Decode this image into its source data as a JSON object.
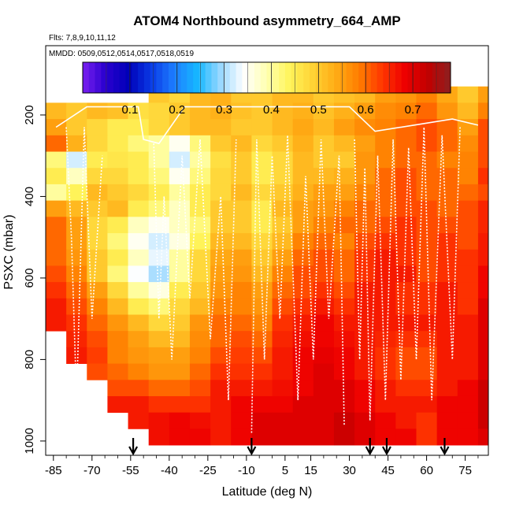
{
  "chart_data": {
    "type": "heatmap",
    "title": "ATOM4 Northbound asymmetry_664_AMP",
    "flights_label": "Flts: 7,8,9,10,11,12",
    "dates_label": "MMDD: 0509,0512,0514,0517,0518,0519",
    "xlabel": "Latitude (deg N)",
    "ylabel": "PSXC (mbar)",
    "xlim": [
      -88,
      84
    ],
    "ylim": [
      1035,
      30
    ],
    "x_ticks": [
      -85,
      -70,
      -55,
      -40,
      -25,
      -10,
      5,
      15,
      30,
      45,
      60,
      75
    ],
    "x_tick_labels": [
      "-85",
      "-70",
      "-55",
      "-40",
      "-25",
      "-10",
      "5",
      "15",
      "30",
      "45",
      "60",
      "75"
    ],
    "y_ticks": [
      200,
      400,
      600,
      800,
      1000
    ],
    "y_tick_labels": [
      "200",
      "400",
      "600",
      "800",
      "1000"
    ],
    "colorbar": {
      "min": 0.0,
      "max": 0.78,
      "ticks": [
        0.1,
        0.2,
        0.3,
        0.4,
        0.5,
        0.6,
        0.7
      ],
      "tick_labels": [
        "0.1",
        "0.2",
        "0.3",
        "0.4",
        "0.5",
        "0.6",
        "0.7"
      ],
      "colors": [
        "#7a1ff0",
        "#2a00cf",
        "#0000b8",
        "#0a3ce6",
        "#1e7fff",
        "#16b8ff",
        "#9ad8ff",
        "#ffffff",
        "#ffffb0",
        "#fff45a",
        "#ffd335",
        "#ffac15",
        "#ff7e00",
        "#ff3800",
        "#ee0000",
        "#c20000",
        "#8c2020"
      ]
    },
    "pressure_levels": [
      150,
      190,
      230,
      270,
      310,
      350,
      390,
      430,
      470,
      510,
      550,
      590,
      630,
      670,
      710,
      750,
      790,
      830,
      870,
      910,
      950,
      990
    ],
    "lat_edges": [
      -88,
      -80,
      -72,
      -64,
      -56,
      -48,
      -40,
      -32,
      -24,
      -16,
      -8,
      0,
      8,
      16,
      24,
      32,
      40,
      48,
      56,
      64,
      72,
      80,
      84
    ],
    "value_grid": [
      [
        null,
        null,
        null,
        null,
        null,
        0.5,
        0.48,
        0.52,
        0.53,
        0.5,
        0.5,
        0.52,
        0.52,
        0.5,
        0.51,
        0.52,
        0.55,
        0.56,
        0.58,
        0.54,
        0.5,
        0.55
      ],
      [
        0.52,
        0.5,
        0.52,
        0.51,
        0.47,
        0.48,
        0.5,
        0.52,
        0.53,
        0.51,
        0.5,
        0.52,
        0.53,
        0.51,
        0.53,
        0.55,
        0.57,
        0.58,
        0.6,
        0.56,
        0.52,
        0.58
      ],
      [
        0.55,
        0.5,
        0.48,
        0.45,
        0.45,
        0.48,
        0.5,
        0.52,
        0.52,
        0.5,
        0.5,
        0.52,
        0.54,
        0.52,
        0.55,
        0.57,
        0.58,
        0.6,
        0.62,
        0.6,
        0.55,
        0.62
      ],
      [
        0.6,
        0.53,
        0.48,
        0.45,
        0.42,
        0.4,
        0.35,
        0.42,
        0.5,
        0.52,
        0.48,
        0.5,
        0.53,
        0.5,
        0.52,
        0.55,
        0.58,
        0.6,
        0.62,
        0.6,
        0.57,
        0.62
      ],
      [
        0.42,
        0.32,
        0.45,
        0.46,
        0.45,
        0.4,
        0.32,
        0.4,
        0.47,
        0.5,
        0.45,
        0.48,
        0.52,
        0.5,
        0.5,
        0.56,
        0.58,
        0.6,
        0.6,
        0.58,
        0.58,
        0.62
      ],
      [
        0.45,
        0.38,
        0.48,
        0.48,
        0.45,
        0.42,
        0.35,
        0.42,
        0.48,
        0.5,
        0.45,
        0.48,
        0.52,
        0.52,
        0.53,
        0.56,
        0.6,
        0.62,
        0.6,
        0.6,
        0.58,
        0.64
      ],
      [
        0.4,
        0.44,
        0.52,
        0.5,
        0.48,
        0.45,
        0.4,
        0.45,
        0.48,
        0.52,
        0.48,
        0.5,
        0.53,
        0.55,
        0.55,
        0.58,
        0.6,
        0.62,
        0.6,
        0.6,
        0.6,
        0.62
      ],
      [
        0.55,
        0.52,
        0.5,
        0.52,
        0.45,
        0.42,
        0.38,
        0.45,
        0.5,
        0.5,
        0.45,
        0.52,
        0.55,
        0.56,
        0.58,
        0.6,
        0.6,
        0.62,
        0.62,
        0.6,
        0.62,
        0.65
      ],
      [
        0.6,
        0.55,
        0.48,
        0.45,
        0.38,
        0.35,
        0.38,
        0.42,
        0.5,
        0.5,
        0.45,
        0.5,
        0.55,
        0.58,
        0.6,
        0.6,
        0.62,
        0.64,
        0.62,
        0.62,
        0.62,
        0.65
      ],
      [
        0.6,
        0.55,
        0.48,
        0.42,
        0.35,
        0.32,
        0.36,
        0.44,
        0.52,
        0.52,
        0.48,
        0.52,
        0.58,
        0.6,
        0.58,
        0.62,
        0.64,
        0.64,
        0.62,
        0.64,
        0.62,
        0.66
      ],
      [
        0.6,
        0.56,
        0.5,
        0.45,
        0.38,
        0.33,
        0.4,
        0.48,
        0.54,
        0.55,
        0.5,
        0.55,
        0.6,
        0.62,
        0.6,
        0.64,
        0.66,
        0.64,
        0.62,
        0.64,
        0.64,
        0.66
      ],
      [
        0.62,
        0.58,
        0.5,
        0.42,
        0.34,
        0.3,
        0.4,
        0.48,
        0.55,
        0.56,
        0.52,
        0.58,
        0.62,
        0.62,
        0.6,
        0.64,
        0.66,
        0.66,
        0.62,
        0.64,
        0.64,
        0.68
      ],
      [
        0.64,
        0.6,
        0.55,
        0.48,
        0.4,
        0.36,
        0.45,
        0.5,
        0.56,
        0.58,
        0.55,
        0.6,
        0.62,
        0.64,
        0.62,
        0.66,
        0.66,
        0.64,
        0.64,
        0.66,
        0.64,
        0.68
      ],
      [
        0.66,
        0.62,
        0.58,
        0.52,
        0.45,
        0.42,
        0.48,
        0.52,
        0.58,
        0.58,
        0.56,
        0.62,
        0.64,
        0.66,
        0.64,
        0.66,
        0.66,
        0.64,
        0.64,
        0.66,
        0.64,
        0.7
      ],
      [
        0.66,
        0.64,
        0.6,
        0.56,
        0.52,
        0.48,
        0.5,
        0.56,
        0.6,
        0.6,
        0.58,
        0.64,
        0.66,
        0.68,
        0.66,
        0.66,
        0.66,
        0.66,
        0.66,
        0.66,
        0.66,
        0.7
      ],
      [
        null,
        0.65,
        0.62,
        0.58,
        0.55,
        0.52,
        0.52,
        0.57,
        0.6,
        0.62,
        0.6,
        0.65,
        0.67,
        0.68,
        0.67,
        0.66,
        0.65,
        0.64,
        0.64,
        0.66,
        0.66,
        0.7
      ],
      [
        null,
        0.66,
        0.63,
        0.58,
        0.56,
        0.55,
        0.55,
        0.58,
        0.62,
        0.63,
        0.62,
        0.66,
        0.68,
        0.69,
        0.68,
        0.66,
        0.64,
        0.62,
        0.62,
        0.66,
        0.66,
        0.7
      ],
      [
        null,
        null,
        0.62,
        0.6,
        0.58,
        0.56,
        0.56,
        0.6,
        0.64,
        0.64,
        0.64,
        0.66,
        0.68,
        0.7,
        0.68,
        0.66,
        0.64,
        0.62,
        0.62,
        0.66,
        0.66,
        0.7
      ],
      [
        null,
        null,
        null,
        0.62,
        0.62,
        0.6,
        0.6,
        0.62,
        0.66,
        0.66,
        0.66,
        0.67,
        0.68,
        0.7,
        0.7,
        0.68,
        0.66,
        0.64,
        0.64,
        0.66,
        0.68,
        0.72
      ],
      [
        null,
        null,
        null,
        0.66,
        0.66,
        0.64,
        0.64,
        0.64,
        0.66,
        0.68,
        0.68,
        0.68,
        0.7,
        0.7,
        0.7,
        0.68,
        0.66,
        0.66,
        0.66,
        0.68,
        0.68,
        0.72
      ],
      [
        null,
        null,
        null,
        null,
        0.66,
        0.67,
        0.68,
        0.67,
        0.66,
        0.68,
        0.7,
        0.7,
        0.7,
        0.7,
        0.72,
        0.7,
        0.68,
        0.66,
        0.64,
        0.68,
        0.68,
        0.72
      ],
      [
        null,
        null,
        null,
        null,
        null,
        0.67,
        0.68,
        0.68,
        0.66,
        0.68,
        0.7,
        0.7,
        0.7,
        0.7,
        0.72,
        0.7,
        0.68,
        0.68,
        0.64,
        0.68,
        0.68,
        0.7
      ]
    ],
    "flight_tracks": [
      {
        "name": "track-1",
        "points": [
          [
            -80,
            230
          ],
          [
            -78,
            500
          ],
          [
            -76,
            900
          ],
          [
            -73,
            230
          ],
          [
            -70,
            700
          ],
          [
            -66,
            300
          ]
        ]
      },
      {
        "name": "track-2",
        "points": [
          [
            -46,
            270
          ],
          [
            -44,
            700
          ],
          [
            -42,
            400
          ],
          [
            -39,
            800
          ],
          [
            -35,
            300
          ],
          [
            -32,
            650
          ],
          [
            -28,
            260
          ],
          [
            -24,
            750
          ],
          [
            -20,
            400
          ],
          [
            -17,
            900
          ],
          [
            -14,
            260
          ]
        ]
      },
      {
        "name": "track-3",
        "points": [
          [
            -8,
            980
          ],
          [
            -6,
            260
          ],
          [
            -3,
            800
          ],
          [
            0,
            300
          ],
          [
            3,
            700
          ],
          [
            6,
            250
          ],
          [
            10,
            900
          ],
          [
            13,
            350
          ],
          [
            16,
            800
          ],
          [
            19,
            260
          ],
          [
            22,
            700
          ],
          [
            26,
            300
          ],
          [
            28,
            960
          ]
        ]
      },
      {
        "name": "track-4",
        "points": [
          [
            32,
            260
          ],
          [
            34,
            800
          ],
          [
            36,
            330
          ],
          [
            38,
            950
          ],
          [
            41,
            300
          ],
          [
            44,
            900
          ],
          [
            47,
            260
          ],
          [
            50,
            850
          ],
          [
            53,
            280
          ],
          [
            56,
            800
          ],
          [
            59,
            230
          ],
          [
            62,
            900
          ],
          [
            66,
            250
          ],
          [
            70,
            800
          ],
          [
            73,
            230
          ]
        ]
      },
      {
        "name": "top-line",
        "points": [
          [
            -84,
            230
          ],
          [
            -72,
            180
          ],
          [
            -60,
            180
          ],
          [
            -52,
            180
          ],
          [
            -50,
            260
          ],
          [
            -44,
            270
          ],
          [
            -34,
            180
          ],
          [
            -22,
            180
          ],
          [
            -10,
            180
          ],
          [
            0,
            180
          ],
          [
            30,
            180
          ],
          [
            40,
            240
          ],
          [
            60,
            220
          ],
          [
            70,
            210
          ],
          [
            80,
            225
          ]
        ]
      }
    ],
    "markers": [
      {
        "name": "arrow-1",
        "lat": -54,
        "label": ""
      },
      {
        "name": "arrow-2",
        "lat": -8,
        "label": ""
      },
      {
        "name": "arrow-3",
        "lat": 38,
        "label": ""
      },
      {
        "name": "arrow-4",
        "lat": 44.5,
        "label": ""
      },
      {
        "name": "arrow-5",
        "lat": 67,
        "label": ""
      }
    ]
  }
}
